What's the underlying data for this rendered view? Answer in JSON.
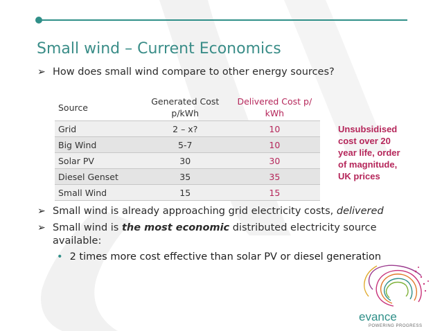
{
  "title": "Small wind – Current Economics",
  "bullets": {
    "question": "How does small wind compare to other energy sources?",
    "approaching_prefix": "Small wind is already approaching grid electricity costs, ",
    "approaching_em": "delivered",
    "economic_prefix": "Small wind is ",
    "economic_em": "the most economic",
    "economic_suffix": " distributed electricity source",
    "economic_cont": "available:",
    "sub_point": "2 times more cost effective than solar PV or diesel generation"
  },
  "table": {
    "headers": {
      "source": "Source",
      "generated_l1": "Generated Cost",
      "generated_l2": "p/kWh",
      "delivered_l1": "Delivered Cost p/",
      "delivered_l2": "kWh"
    },
    "rows": [
      {
        "source": "Grid",
        "generated": "2 – x?",
        "delivered": "10"
      },
      {
        "source": "Big Wind",
        "generated": "5-7",
        "delivered": "10"
      },
      {
        "source": "Solar PV",
        "generated": "30",
        "delivered": "30"
      },
      {
        "source": "Diesel Genset",
        "generated": "35",
        "delivered": "35"
      },
      {
        "source": "Small Wind",
        "generated": "15",
        "delivered": "15"
      }
    ]
  },
  "note": {
    "l1": "Unsubsidised",
    "l2": "cost over 20",
    "l3": "year life, order",
    "l4": "of magnitude,",
    "l5": "UK prices"
  },
  "logo": {
    "word": "evance",
    "tagline": "POWERING PROGRESS"
  },
  "colors": {
    "accent_teal": "#2f8f88",
    "accent_magenta": "#b5265a"
  }
}
